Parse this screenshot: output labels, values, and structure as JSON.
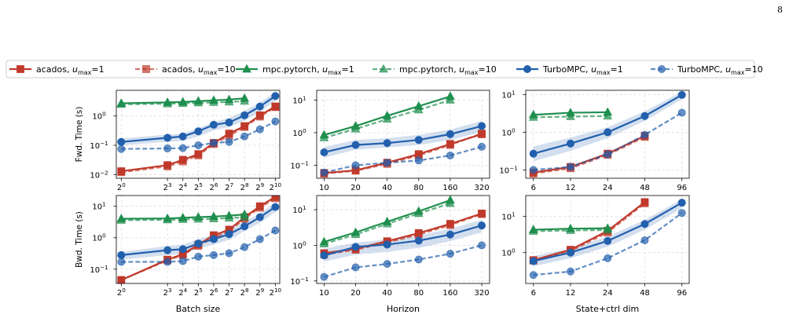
{
  "page_number": "8",
  "legend": [
    {
      "label": "acados, ",
      "sub": "max",
      "suffix": "=1",
      "color": "#c0392b",
      "marker": "square",
      "dashed": false,
      "alpha": 1
    },
    {
      "label": "acados, ",
      "sub": "max",
      "suffix": "=10",
      "color": "#c0392b",
      "marker": "square",
      "dashed": true,
      "alpha": 0.7
    },
    {
      "label": "mpc.pytorch, ",
      "sub": "max",
      "suffix": "=1",
      "color": "#1f8f4e",
      "marker": "triangle",
      "dashed": false,
      "alpha": 1
    },
    {
      "label": "mpc.pytorch, ",
      "sub": "max",
      "suffix": "=10",
      "color": "#1f8f4e",
      "marker": "triangle",
      "dashed": true,
      "alpha": 0.7
    },
    {
      "label": "TurboMPC, ",
      "sub": "max",
      "suffix": "=1",
      "color": "#2260ad",
      "marker": "circle",
      "dashed": false,
      "alpha": 1
    },
    {
      "label": "TurboMPC, ",
      "sub": "max",
      "suffix": "=10",
      "color": "#2260ad",
      "marker": "circle",
      "dashed": true,
      "alpha": 0.7
    }
  ],
  "chart_data": [
    {
      "type": "line",
      "panel": "fwd-batch",
      "ylabel": "Fwd. Time (s)",
      "xlabel": "",
      "x": [
        1,
        8,
        16,
        32,
        64,
        128,
        256,
        512,
        1024
      ],
      "xticks": [
        1,
        8,
        16,
        32,
        64,
        128,
        256,
        512,
        1024
      ],
      "xticklabels": [
        [
          "2",
          "0"
        ],
        [
          "2",
          "3"
        ],
        [
          "2",
          "4"
        ],
        [
          "2",
          "5"
        ],
        [
          "2",
          "6"
        ],
        [
          "2",
          "7"
        ],
        [
          "2",
          "8"
        ],
        [
          "2",
          "9"
        ],
        [
          "2",
          "10"
        ]
      ],
      "xscale": "log2",
      "xlim": [
        0.8,
        1250
      ],
      "yscale": "log",
      "ylim": [
        0.0075,
        7.5
      ],
      "yticks": [
        0.01,
        0.1,
        1
      ],
      "yticklabels": [
        [
          "10",
          "−2"
        ],
        [
          "10",
          "−1"
        ],
        [
          "10",
          "0"
        ]
      ],
      "band": {
        "lower": [
          0.1,
          0.13,
          0.14,
          0.2,
          0.32,
          0.42,
          0.7,
          1.4,
          3.2
        ],
        "upper": [
          0.17,
          0.23,
          0.25,
          0.38,
          0.62,
          0.85,
          1.5,
          2.9,
          6.5
        ]
      },
      "series": [
        {
          "values": [
            0.013,
            0.021,
            0.032,
            0.05,
            0.12,
            0.25,
            0.45,
            1.05,
            2.1
          ]
        },
        {
          "values": [
            0.012,
            0.019,
            0.028,
            0.045,
            0.11,
            0.21,
            0.42,
            0.95,
            2.0
          ]
        },
        {
          "values": [
            2.7,
            2.9,
            3.0,
            3.2,
            3.4,
            3.6,
            4.0,
            null,
            null
          ]
        },
        {
          "values": [
            2.5,
            2.6,
            2.7,
            2.8,
            2.9,
            3.0,
            3.2,
            null,
            null
          ]
        },
        {
          "values": [
            0.13,
            0.18,
            0.2,
            0.3,
            0.5,
            0.6,
            1.05,
            2.1,
            4.8
          ]
        },
        {
          "values": [
            0.075,
            0.078,
            0.08,
            0.1,
            0.12,
            0.13,
            0.2,
            0.35,
            0.65
          ]
        }
      ]
    },
    {
      "type": "line",
      "panel": "fwd-horizon",
      "ylabel": "",
      "xlabel": "",
      "x": [
        10,
        20,
        40,
        80,
        160,
        320
      ],
      "xticks": [
        10,
        20,
        40,
        80,
        160,
        320
      ],
      "xticklabels": [
        [
          "10",
          ""
        ],
        [
          "20",
          ""
        ],
        [
          "40",
          ""
        ],
        [
          "80",
          ""
        ],
        [
          "160",
          ""
        ],
        [
          "320",
          ""
        ]
      ],
      "xscale": "log2",
      "xlim": [
        8.5,
        380
      ],
      "yscale": "log",
      "ylim": [
        0.04,
        20
      ],
      "yticks": [
        0.1,
        1,
        10
      ],
      "yticklabels": [
        [
          "10",
          "−1"
        ],
        [
          "10",
          "0"
        ],
        [
          "10",
          "1"
        ]
      ],
      "band": {
        "lower": [
          0.17,
          0.3,
          0.35,
          0.42,
          0.6,
          1.05
        ],
        "upper": [
          0.36,
          0.6,
          0.68,
          0.85,
          1.25,
          2.3
        ]
      },
      "series": [
        {
          "values": [
            0.058,
            0.07,
            0.12,
            0.22,
            0.45,
            0.9
          ]
        },
        {
          "values": [
            0.055,
            0.068,
            0.11,
            0.2,
            0.42,
            0.95
          ]
        },
        {
          "values": [
            0.85,
            1.6,
            3.3,
            6.5,
            13.0,
            null
          ]
        },
        {
          "values": [
            0.7,
            1.3,
            2.6,
            5.0,
            10.0,
            null
          ]
        },
        {
          "values": [
            0.25,
            0.42,
            0.48,
            0.6,
            0.9,
            1.6
          ]
        },
        {
          "values": [
            0.06,
            0.1,
            0.12,
            0.14,
            0.2,
            0.37
          ]
        }
      ]
    },
    {
      "type": "line",
      "panel": "fwd-dim",
      "ylabel": "",
      "xlabel": "",
      "x": [
        6,
        12,
        24,
        48,
        96
      ],
      "xticks": [
        6,
        12,
        24,
        48,
        96
      ],
      "xticklabels": [
        [
          "6",
          ""
        ],
        [
          "12",
          ""
        ],
        [
          "24",
          ""
        ],
        [
          "48",
          ""
        ],
        [
          "96",
          ""
        ]
      ],
      "xscale": "log2",
      "xlim": [
        5.2,
        110
      ],
      "yscale": "log",
      "ylim": [
        0.06,
        13
      ],
      "yticks": [
        0.1,
        1,
        10
      ],
      "yticklabels": [
        [
          "10",
          "−1"
        ],
        [
          "10",
          "0"
        ],
        [
          "10",
          "1"
        ]
      ],
      "band": {
        "lower": [
          0.17,
          0.32,
          0.7,
          2.0,
          7.5
        ],
        "upper": [
          0.42,
          0.72,
          1.35,
          3.6,
          12.0
        ]
      },
      "series": [
        {
          "values": [
            0.085,
            0.12,
            0.27,
            0.8,
            null
          ]
        },
        {
          "values": [
            0.08,
            0.11,
            0.25,
            0.75,
            null
          ]
        },
        {
          "values": [
            2.9,
            3.3,
            3.4,
            null,
            null
          ]
        },
        {
          "values": [
            2.5,
            2.6,
            2.7,
            null,
            null
          ]
        },
        {
          "values": [
            0.27,
            0.5,
            1.0,
            2.7,
            9.8
          ]
        },
        {
          "values": [
            0.1,
            0.12,
            0.26,
            0.85,
            3.3
          ]
        }
      ]
    },
    {
      "type": "line",
      "panel": "bwd-batch",
      "ylabel": "Bwd. Time (s)",
      "xlabel": "Batch size",
      "x": [
        1,
        8,
        16,
        32,
        64,
        128,
        256,
        512,
        1024
      ],
      "xticks": [
        1,
        8,
        16,
        32,
        64,
        128,
        256,
        512,
        1024
      ],
      "xticklabels": [
        [
          "2",
          "0"
        ],
        [
          "2",
          "3"
        ],
        [
          "2",
          "4"
        ],
        [
          "2",
          "5"
        ],
        [
          "2",
          "6"
        ],
        [
          "2",
          "7"
        ],
        [
          "2",
          "8"
        ],
        [
          "2",
          "9"
        ],
        [
          "2",
          "10"
        ]
      ],
      "xscale": "log2",
      "xlim": [
        0.8,
        1250
      ],
      "yscale": "log",
      "ylim": [
        0.035,
        22
      ],
      "yticks": [
        0.1,
        1,
        10
      ],
      "yticklabels": [
        [
          "10",
          "−1"
        ],
        [
          "10",
          "0"
        ],
        [
          "10",
          "1"
        ]
      ],
      "band": {
        "lower": [
          0.2,
          0.28,
          0.3,
          0.45,
          0.6,
          0.85,
          1.6,
          3.0,
          6.5
        ],
        "upper": [
          0.35,
          0.55,
          0.6,
          0.9,
          1.25,
          1.8,
          3.2,
          6.0,
          13.0
        ]
      },
      "series": [
        {
          "values": [
            0.045,
            0.2,
            0.3,
            0.6,
            1.2,
            1.8,
            4.5,
            10.0,
            20.0
          ]
        },
        {
          "values": [
            0.045,
            0.19,
            0.28,
            0.55,
            1.0,
            1.6,
            4.0,
            9.0,
            18.0
          ]
        },
        {
          "values": [
            4.0,
            4.1,
            4.3,
            4.5,
            4.7,
            5.0,
            5.5,
            null,
            null
          ]
        },
        {
          "values": [
            3.6,
            3.7,
            3.8,
            3.9,
            4.0,
            4.2,
            4.5,
            null,
            null
          ]
        },
        {
          "values": [
            0.28,
            0.4,
            0.43,
            0.65,
            0.9,
            1.3,
            2.3,
            4.5,
            9.5
          ]
        },
        {
          "values": [
            0.17,
            0.17,
            0.18,
            0.25,
            0.28,
            0.32,
            0.5,
            0.9,
            1.7
          ]
        }
      ]
    },
    {
      "type": "line",
      "panel": "bwd-horizon",
      "ylabel": "",
      "xlabel": "Horizon",
      "x": [
        10,
        20,
        40,
        80,
        160,
        320
      ],
      "xticks": [
        10,
        20,
        40,
        80,
        160,
        320
      ],
      "xticklabels": [
        [
          "10",
          ""
        ],
        [
          "20",
          ""
        ],
        [
          "40",
          ""
        ],
        [
          "80",
          ""
        ],
        [
          "160",
          ""
        ],
        [
          "320",
          ""
        ]
      ],
      "xscale": "log2",
      "xlim": [
        8.5,
        380
      ],
      "yscale": "log",
      "ylim": [
        0.085,
        25
      ],
      "yticks": [
        0.1,
        1,
        10
      ],
      "yticklabels": [
        [
          "10",
          "−1"
        ],
        [
          "10",
          "0"
        ],
        [
          "10",
          "1"
        ]
      ],
      "band": {
        "lower": [
          0.35,
          0.55,
          0.65,
          0.85,
          1.3,
          2.3
        ],
        "upper": [
          0.8,
          1.2,
          1.45,
          1.9,
          2.9,
          5.2
        ]
      },
      "series": [
        {
          "values": [
            0.6,
            0.8,
            1.3,
            2.2,
            4.0,
            7.8
          ]
        },
        {
          "values": [
            0.55,
            0.75,
            1.2,
            2.0,
            3.7,
            7.5
          ]
        },
        {
          "values": [
            1.25,
            2.3,
            4.6,
            9.0,
            18.5,
            null
          ]
        },
        {
          "values": [
            1.1,
            2.0,
            4.0,
            7.8,
            15.0,
            null
          ]
        },
        {
          "values": [
            0.52,
            0.9,
            1.05,
            1.35,
            2.0,
            3.6
          ]
        },
        {
          "values": [
            0.13,
            0.24,
            0.3,
            0.4,
            0.58,
            1.0
          ]
        }
      ]
    },
    {
      "type": "line",
      "panel": "bwd-dim",
      "ylabel": "",
      "xlabel": "State+ctrl dim",
      "x": [
        6,
        12,
        24,
        48,
        96
      ],
      "xticks": [
        6,
        12,
        24,
        48,
        96
      ],
      "xticklabels": [
        [
          "6",
          ""
        ],
        [
          "12",
          ""
        ],
        [
          "24",
          ""
        ],
        [
          "48",
          ""
        ],
        [
          "96",
          ""
        ]
      ],
      "xscale": "log2",
      "xlim": [
        5.2,
        110
      ],
      "yscale": "log",
      "ylim": [
        0.14,
        38
      ],
      "yticks": [
        1,
        10
      ],
      "yticklabels": [
        [
          "10",
          "0"
        ],
        [
          "10",
          "1"
        ]
      ],
      "band": {
        "lower": [
          0.42,
          0.7,
          1.45,
          4.3,
          17.0
        ],
        "upper": [
          0.8,
          1.3,
          2.8,
          8.0,
          30.0
        ]
      },
      "series": [
        {
          "values": [
            0.62,
            1.2,
            4.0,
            25.0,
            null
          ]
        },
        {
          "values": [
            0.6,
            1.1,
            3.6,
            23.0,
            null
          ]
        },
        {
          "values": [
            4.3,
            4.6,
            4.7,
            null,
            null
          ]
        },
        {
          "values": [
            3.9,
            4.1,
            4.2,
            null,
            null
          ]
        },
        {
          "values": [
            0.58,
            1.0,
            2.1,
            6.2,
            24.0
          ]
        },
        {
          "values": [
            0.24,
            0.3,
            0.7,
            2.2,
            12.5
          ]
        }
      ]
    }
  ]
}
